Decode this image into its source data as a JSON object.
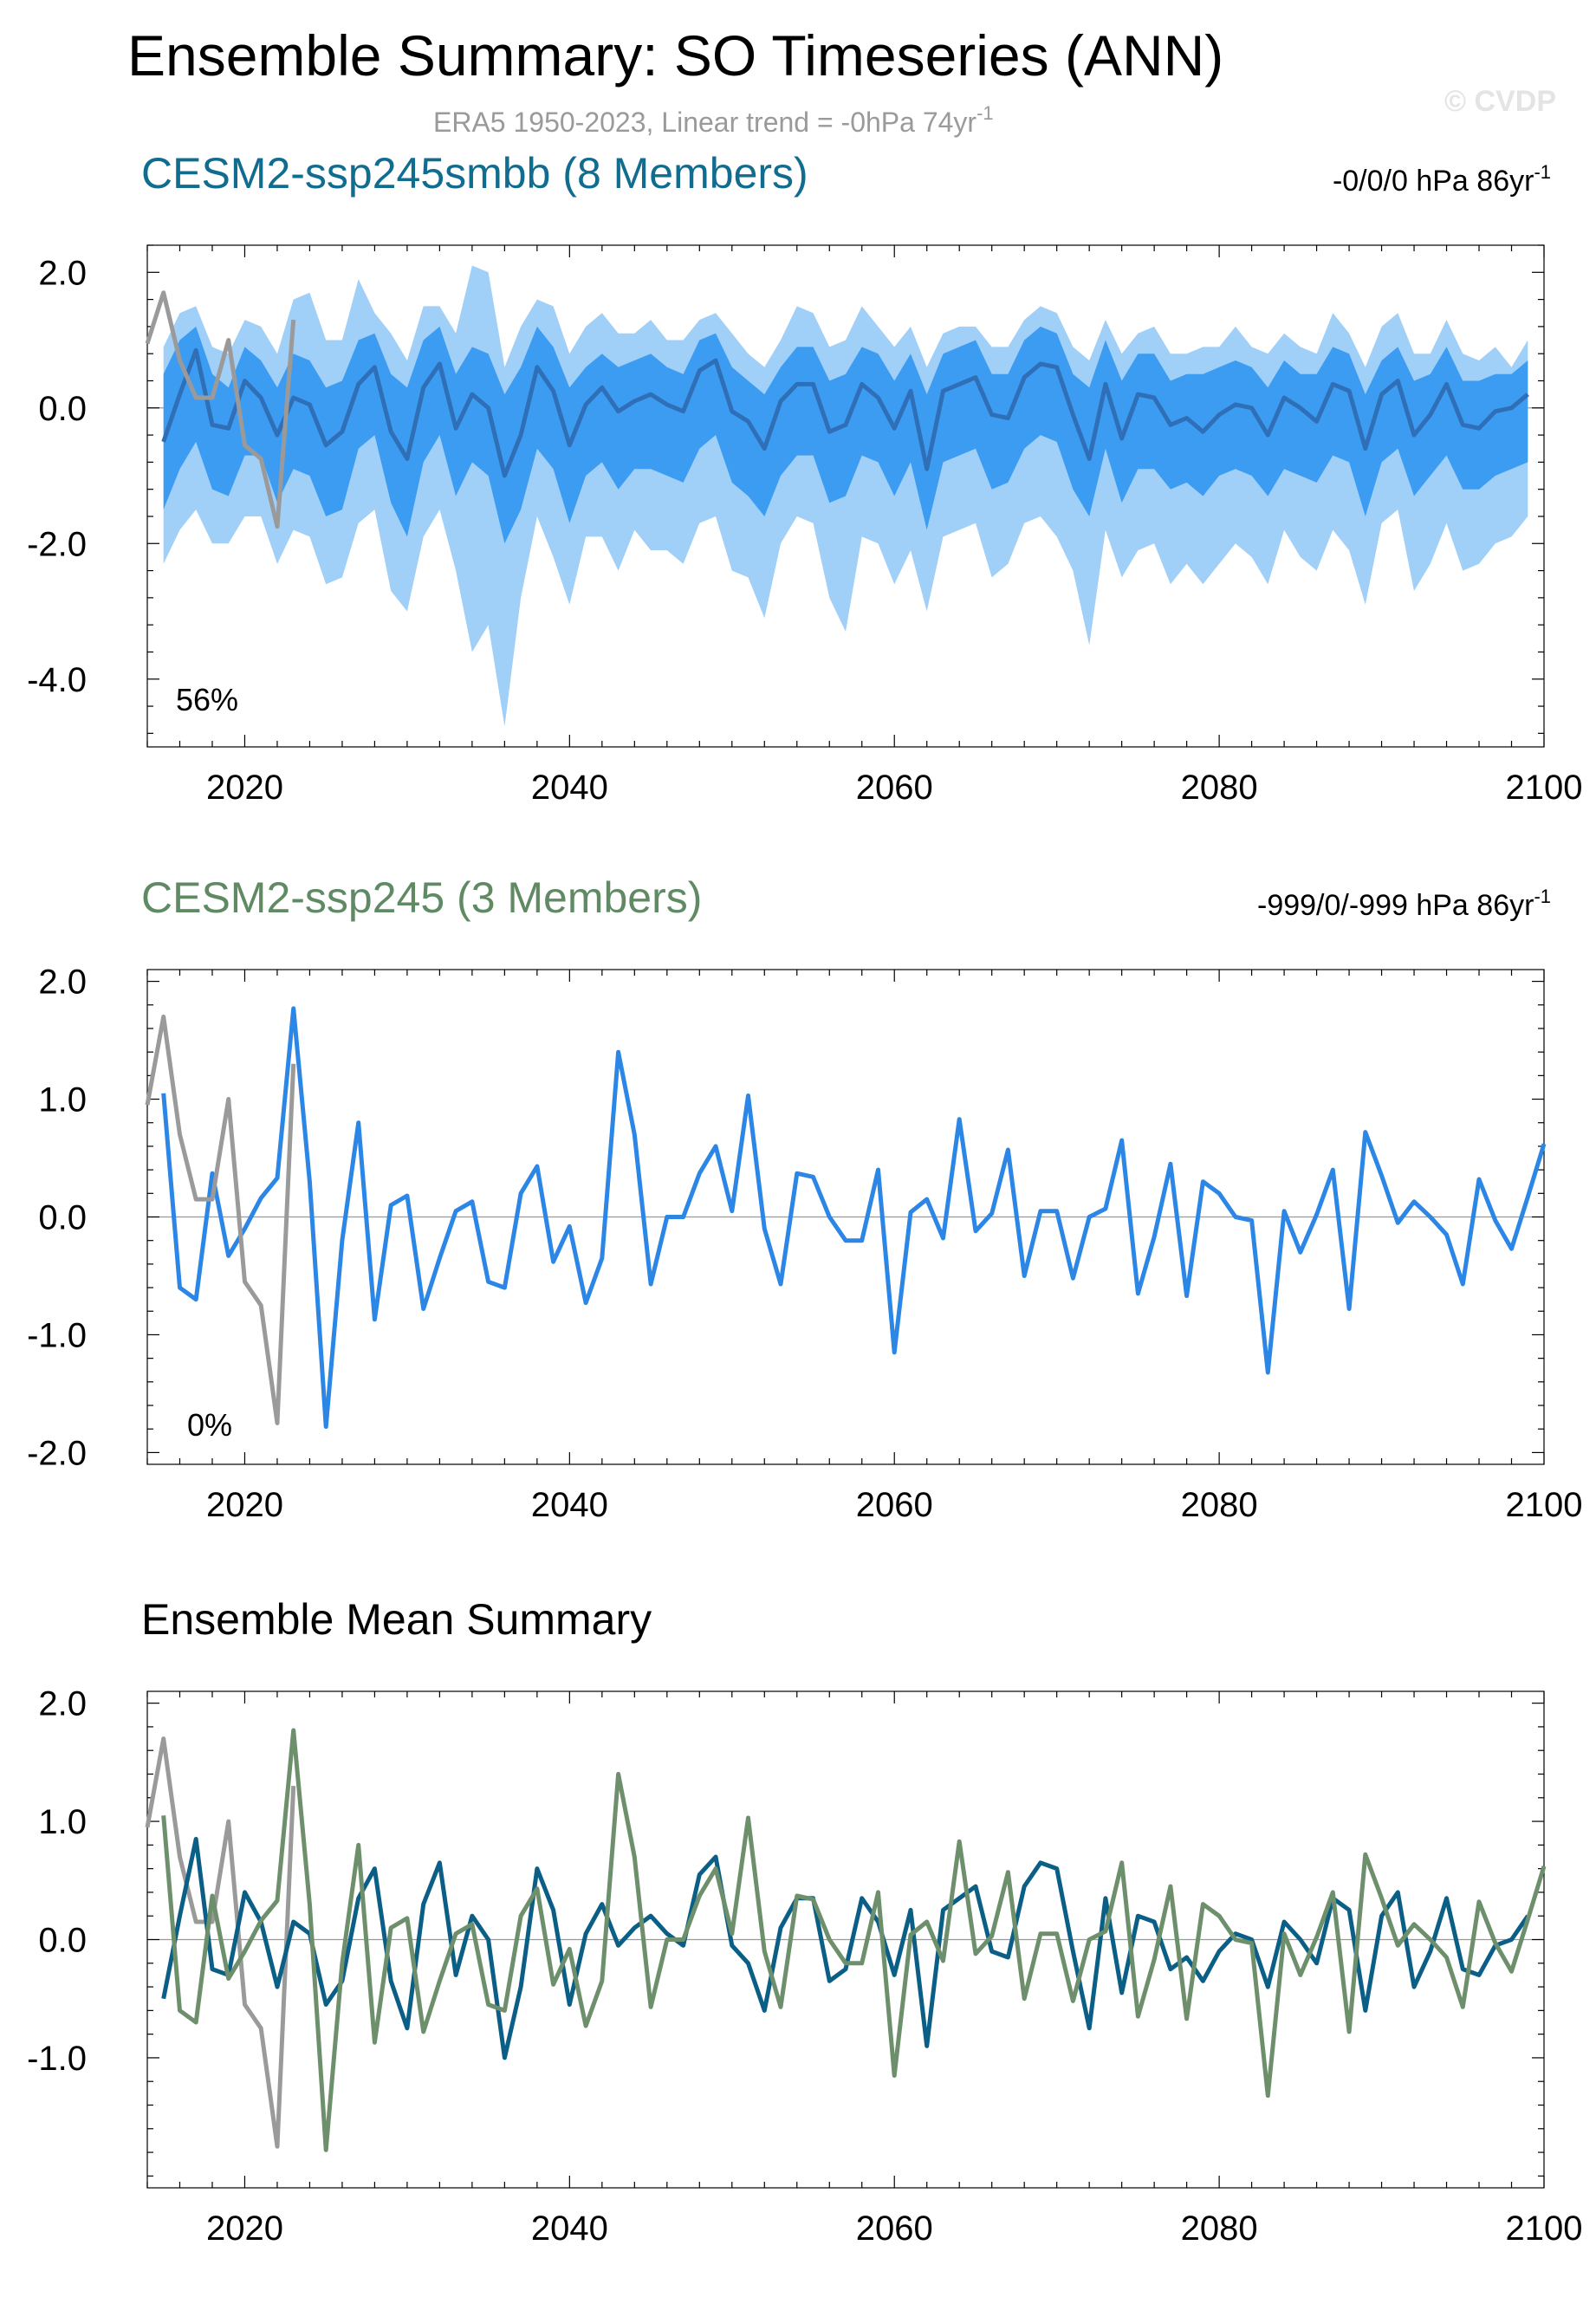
{
  "title": "Ensemble Summary: SO Timeseries (ANN)",
  "subtitle": "ERA5 1950-2023, Linear trend = -0hPa 74yr",
  "subtitle_sup": "-1",
  "watermark": "© CVDP",
  "colors": {
    "obs": "#9a9a9a",
    "spread_outer": "#a0cff8",
    "spread_inner": "#3c9cf2",
    "ens1_mean": "#2f6fb8",
    "member_line": "#2b86e6",
    "ens1_title": "#106d8f",
    "ens2_title": "#5f8a63",
    "summary_ens1": "#0b5f86",
    "summary_ens2": "#6d8f6c"
  },
  "chart_data": [
    {
      "type": "area",
      "title": "CESM2-ssp245smbb (8 Members)",
      "trend_label": "-0/0/0 hPa 86yr",
      "trend_sup": "-1",
      "percent_label": "56%",
      "xlim": [
        2014,
        2100
      ],
      "ylim": [
        -5,
        2.4
      ],
      "x_ticks": [
        2020,
        2040,
        2060,
        2080,
        2100
      ],
      "y_ticks": [
        -4,
        -2,
        0,
        2
      ],
      "y_tick_labels": [
        "-4.0",
        "-2.0",
        "0.0",
        "2.0"
      ],
      "x_start": 2015,
      "observed": {
        "name": "ERA5",
        "x": [
          2014,
          2015,
          2016,
          2017,
          2018,
          2019,
          2020,
          2021,
          2022,
          2023
        ],
        "values": [
          0.95,
          1.7,
          0.7,
          0.15,
          0.15,
          1.0,
          -0.55,
          -0.75,
          -1.75,
          1.3
        ]
      },
      "ensemble_mean": [
        -0.5,
        0.2,
        0.85,
        -0.25,
        -0.3,
        0.4,
        0.15,
        -0.4,
        0.15,
        0.05,
        -0.55,
        -0.35,
        0.35,
        0.6,
        -0.35,
        -0.75,
        0.3,
        0.65,
        -0.3,
        0.2,
        0.0,
        -1.0,
        -0.4,
        0.6,
        0.25,
        -0.55,
        0.05,
        0.3,
        -0.05,
        0.1,
        0.2,
        0.05,
        -0.05,
        0.55,
        0.7,
        -0.05,
        -0.2,
        -0.6,
        0.1,
        0.35,
        0.35,
        -0.35,
        -0.25,
        0.35,
        0.15,
        -0.3,
        0.25,
        -0.9,
        0.25,
        0.35,
        0.45,
        -0.1,
        -0.15,
        0.45,
        0.65,
        0.6,
        -0.1,
        -0.75,
        0.35,
        -0.45,
        0.2,
        0.15,
        -0.25,
        -0.15,
        -0.35,
        -0.1,
        0.05,
        0.0,
        -0.4,
        0.15,
        0.0,
        -0.2,
        0.35,
        0.25,
        -0.6,
        0.2,
        0.4,
        -0.4,
        -0.1,
        0.35,
        -0.25,
        -0.3,
        -0.05,
        0.0,
        0.2
      ],
      "inner_upper": [
        0.5,
        1.0,
        1.2,
        0.5,
        0.3,
        0.9,
        0.7,
        0.3,
        0.8,
        0.7,
        0.3,
        0.4,
        1.0,
        1.1,
        0.5,
        0.3,
        1.0,
        1.2,
        0.5,
        0.9,
        0.8,
        0.2,
        0.6,
        1.2,
        0.9,
        0.3,
        0.6,
        0.8,
        0.6,
        0.7,
        0.8,
        0.6,
        0.5,
        1.0,
        1.1,
        0.6,
        0.4,
        0.2,
        0.6,
        0.9,
        0.9,
        0.4,
        0.5,
        0.9,
        0.8,
        0.4,
        0.8,
        0.2,
        0.8,
        0.9,
        1.0,
        0.5,
        0.5,
        1.0,
        1.2,
        1.1,
        0.5,
        0.3,
        1.0,
        0.4,
        0.8,
        0.8,
        0.4,
        0.5,
        0.5,
        0.6,
        0.7,
        0.6,
        0.3,
        0.7,
        0.5,
        0.5,
        0.9,
        0.8,
        0.2,
        0.7,
        0.9,
        0.4,
        0.5,
        0.9,
        0.4,
        0.4,
        0.5,
        0.5,
        0.7
      ],
      "inner_lower": [
        -1.5,
        -0.9,
        -0.5,
        -1.2,
        -1.3,
        -0.7,
        -0.7,
        -1.4,
        -0.9,
        -1.0,
        -1.6,
        -1.5,
        -0.6,
        -0.4,
        -1.4,
        -1.9,
        -0.8,
        -0.4,
        -1.3,
        -0.8,
        -1.0,
        -2.0,
        -1.5,
        -0.6,
        -0.9,
        -1.7,
        -1.0,
        -0.8,
        -1.2,
        -0.9,
        -0.9,
        -1.0,
        -1.1,
        -0.6,
        -0.4,
        -1.1,
        -1.3,
        -1.6,
        -1.0,
        -0.7,
        -0.7,
        -1.4,
        -1.3,
        -0.7,
        -0.8,
        -1.3,
        -0.8,
        -1.8,
        -0.8,
        -0.7,
        -0.6,
        -1.2,
        -1.1,
        -0.6,
        -0.4,
        -0.5,
        -1.2,
        -1.6,
        -0.6,
        -1.4,
        -0.9,
        -0.9,
        -1.2,
        -1.1,
        -1.3,
        -1.0,
        -0.9,
        -1.0,
        -1.3,
        -0.9,
        -1.0,
        -1.1,
        -0.7,
        -0.8,
        -1.6,
        -0.8,
        -0.6,
        -1.3,
        -1.0,
        -0.7,
        -1.2,
        -1.2,
        -1.0,
        -0.9,
        -0.8
      ],
      "outer_upper": [
        0.9,
        1.4,
        1.5,
        0.9,
        0.8,
        1.3,
        1.2,
        0.8,
        1.6,
        1.7,
        1.0,
        1.0,
        1.9,
        1.4,
        1.1,
        0.7,
        1.5,
        1.5,
        1.1,
        2.1,
        2.0,
        0.6,
        1.2,
        1.6,
        1.5,
        0.8,
        1.2,
        1.4,
        1.1,
        1.1,
        1.3,
        1.0,
        1.0,
        1.3,
        1.4,
        1.1,
        0.8,
        0.6,
        1.0,
        1.5,
        1.4,
        0.9,
        1.0,
        1.5,
        1.2,
        0.9,
        1.2,
        0.6,
        1.1,
        1.2,
        1.2,
        0.9,
        0.9,
        1.3,
        1.5,
        1.4,
        0.9,
        0.7,
        1.3,
        0.8,
        1.1,
        1.2,
        0.8,
        0.8,
        0.9,
        0.9,
        1.2,
        0.9,
        0.8,
        1.1,
        0.9,
        0.8,
        1.4,
        1.1,
        0.6,
        1.2,
        1.4,
        0.8,
        0.8,
        1.3,
        0.8,
        0.7,
        0.9,
        0.6,
        1.0
      ],
      "outer_lower": [
        -2.3,
        -1.8,
        -1.5,
        -2.0,
        -2.0,
        -1.6,
        -1.6,
        -2.3,
        -1.8,
        -1.9,
        -2.6,
        -2.5,
        -1.7,
        -1.5,
        -2.7,
        -3.0,
        -1.9,
        -1.5,
        -2.4,
        -3.6,
        -3.2,
        -4.7,
        -2.8,
        -1.6,
        -2.2,
        -2.9,
        -1.9,
        -1.9,
        -2.4,
        -1.8,
        -2.1,
        -2.1,
        -2.3,
        -1.7,
        -1.6,
        -2.4,
        -2.5,
        -3.1,
        -2.0,
        -1.6,
        -1.7,
        -2.8,
        -3.3,
        -1.9,
        -2.0,
        -2.6,
        -2.1,
        -3.0,
        -1.9,
        -1.8,
        -1.7,
        -2.5,
        -2.3,
        -1.7,
        -1.6,
        -1.9,
        -2.4,
        -3.5,
        -1.8,
        -2.5,
        -2.1,
        -2.0,
        -2.6,
        -2.3,
        -2.6,
        -2.3,
        -2.0,
        -2.2,
        -2.6,
        -1.8,
        -2.2,
        -2.4,
        -1.8,
        -2.1,
        -2.9,
        -1.7,
        -1.5,
        -2.7,
        -2.3,
        -1.7,
        -2.4,
        -2.3,
        -2.0,
        -1.9,
        -1.6
      ]
    },
    {
      "type": "line",
      "title": "CESM2-ssp245 (3 Members)",
      "trend_label": "-999/0/-999 hPa 86yr",
      "trend_sup": "-1",
      "percent_label": "0%",
      "xlim": [
        2014,
        2100
      ],
      "ylim": [
        -2.1,
        2.1
      ],
      "x_ticks": [
        2020,
        2040,
        2060,
        2080,
        2100
      ],
      "y_ticks": [
        -2,
        -1,
        0,
        1,
        2
      ],
      "y_tick_labels": [
        "-2.0",
        "-1.0",
        "0.0",
        "1.0",
        "2.0"
      ],
      "x_start": 2015,
      "observed": {
        "name": "ERA5",
        "x": [
          2014,
          2015,
          2016,
          2017,
          2018,
          2019,
          2020,
          2021,
          2022,
          2023
        ],
        "values": [
          0.95,
          1.7,
          0.7,
          0.15,
          0.15,
          1.0,
          -0.55,
          -0.75,
          -1.75,
          1.3
        ]
      },
      "ensemble_mean": [
        1.05,
        -0.6,
        -0.7,
        0.37,
        -0.33,
        -0.1,
        0.16,
        0.33,
        1.77,
        0.3,
        -1.78,
        -0.2,
        0.8,
        -0.87,
        0.1,
        0.18,
        -0.78,
        -0.35,
        0.05,
        0.13,
        -0.55,
        -0.6,
        0.2,
        0.43,
        -0.38,
        -0.08,
        -0.73,
        -0.35,
        1.4,
        0.7,
        -0.57,
        0.0,
        0.0,
        0.37,
        0.6,
        0.05,
        1.03,
        -0.1,
        -0.57,
        0.37,
        0.34,
        0.0,
        -0.2,
        -0.2,
        0.4,
        -1.15,
        0.04,
        0.15,
        -0.18,
        0.83,
        -0.12,
        0.03,
        0.57,
        -0.5,
        0.05,
        0.05,
        -0.52,
        0.0,
        0.07,
        0.65,
        -0.65,
        -0.17,
        0.45,
        -0.67,
        0.3,
        0.2,
        0.0,
        -0.03,
        -1.32,
        0.05,
        -0.3,
        0.02,
        0.4,
        -0.78,
        0.72,
        0.35,
        -0.05,
        0.13,
        0.0,
        -0.15,
        -0.57,
        0.32,
        -0.03,
        -0.27,
        0.17,
        0.62
      ]
    },
    {
      "type": "line",
      "title": "Ensemble Mean Summary",
      "xlim": [
        2014,
        2100
      ],
      "ylim": [
        -2.1,
        2.1
      ],
      "x_ticks": [
        2020,
        2040,
        2060,
        2080,
        2100
      ],
      "y_ticks": [
        -1,
        0,
        1,
        2
      ],
      "y_tick_labels": [
        "-1.0",
        "0.0",
        "1.0",
        "2.0"
      ],
      "series": [
        {
          "name": "ERA5",
          "ref": "observed"
        },
        {
          "name": "CESM2-ssp245smbb",
          "ref": "ens1_mean"
        },
        {
          "name": "CESM2-ssp245",
          "ref": "ens2_mean"
        }
      ]
    }
  ]
}
